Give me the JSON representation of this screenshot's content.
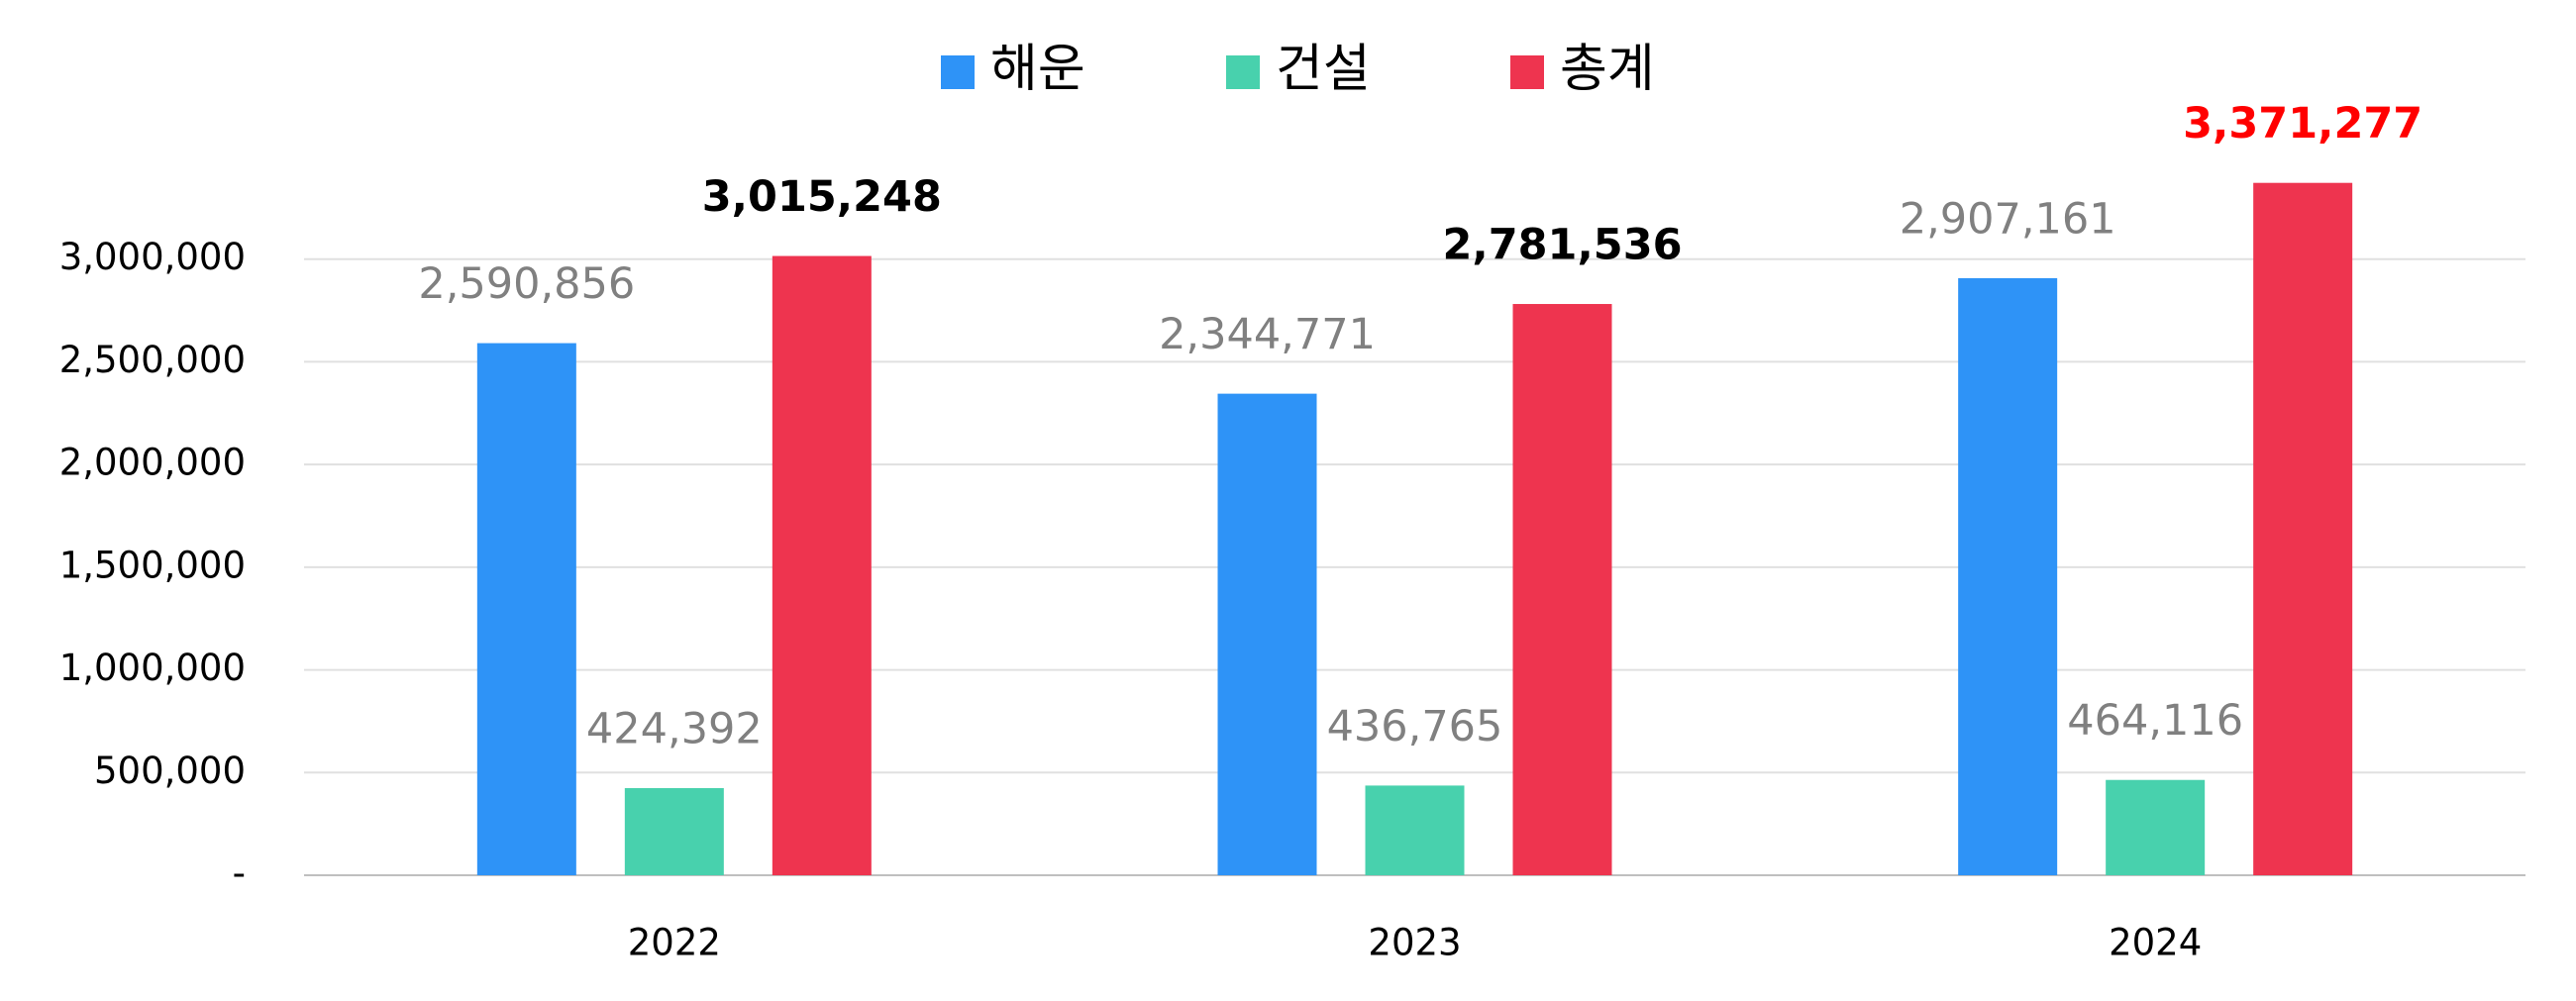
{
  "chart_data": {
    "type": "bar",
    "categories": [
      "2022",
      "2023",
      "2024"
    ],
    "series": [
      {
        "name": "해운",
        "color": "#2e93f7",
        "values": [
          2590856,
          2344771,
          2907161
        ],
        "value_labels": [
          "2,590,856",
          "2,344,771",
          "2,907,161"
        ],
        "value_label_color": "#808080",
        "value_label_bold": false
      },
      {
        "name": "건설",
        "color": "#48d1ad",
        "values": [
          424392,
          436765,
          464116
        ],
        "value_labels": [
          "424,392",
          "436,765",
          "464,116"
        ],
        "value_label_color": "#808080",
        "value_label_bold": false
      },
      {
        "name": "총계",
        "color": "#ee344f",
        "values": [
          3015248,
          2781536,
          3371277
        ],
        "value_labels": [
          "3,015,248",
          "2,781,536",
          "3,371,277"
        ],
        "value_label_colors": [
          "#000000",
          "#000000",
          "#ff0000"
        ],
        "value_label_bold": true
      }
    ],
    "ylim": [
      0,
      3500000
    ],
    "yticks": [
      {
        "value": 0,
        "label": "-"
      },
      {
        "value": 500000,
        "label": "500,000"
      },
      {
        "value": 1000000,
        "label": "1,000,000"
      },
      {
        "value": 1500000,
        "label": "1,500,000"
      },
      {
        "value": 2000000,
        "label": "2,000,000"
      },
      {
        "value": 2500000,
        "label": "2,500,000"
      },
      {
        "value": 3000000,
        "label": "3,000,000"
      }
    ],
    "grid": true,
    "legend": "top"
  }
}
